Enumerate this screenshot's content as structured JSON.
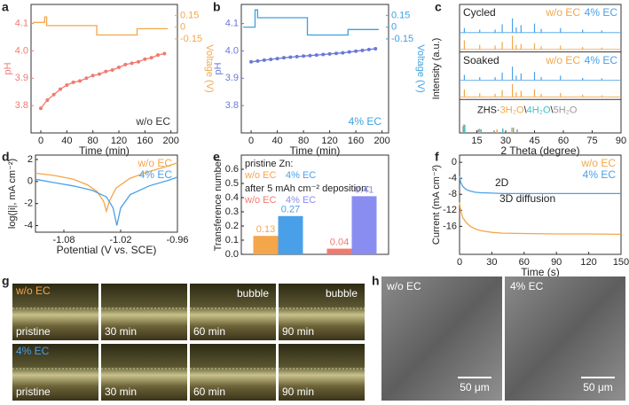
{
  "panel_labels": [
    "a",
    "b",
    "c",
    "d",
    "e",
    "f",
    "g",
    "h"
  ],
  "chart_data": [
    {
      "type": "line",
      "xlabel": "Time (min)",
      "ylabel": "pH",
      "y2label": "Voltage (V)",
      "xlim": [
        -15,
        210
      ],
      "xticks": [
        0,
        40,
        80,
        120,
        160,
        200
      ],
      "ylim": [
        3.7,
        4.17
      ],
      "yticks": [
        3.8,
        3.9,
        {
          "value": 4,
          "label": "4.0"
        },
        4.1
      ],
      "y2lim": [
        -1.35,
        0.29
      ],
      "y2ticks": [
        0.15,
        0,
        -0.15
      ],
      "annotation": {
        "text": "w/o EC",
        "color": "#333333"
      },
      "series": [
        {
          "name": "pH",
          "color": "#f07a70",
          "markers": true,
          "x": [
            0,
            10,
            20,
            30,
            40,
            50,
            60,
            70,
            80,
            90,
            100,
            110,
            120,
            130,
            140,
            150,
            160,
            170,
            180,
            190
          ],
          "values": [
            3.79,
            3.82,
            3.84,
            3.86,
            3.875,
            3.885,
            3.89,
            3.9,
            3.91,
            3.915,
            3.925,
            3.93,
            3.94,
            3.95,
            3.955,
            3.96,
            3.97,
            3.975,
            3.985,
            3.99
          ]
        },
        {
          "name": "Voltage",
          "color": "#f4a64a",
          "axis": "y2",
          "x": [
            -12,
            6,
            6,
            9,
            9,
            86,
            86,
            148,
            148,
            195
          ],
          "values": [
            0.06,
            0.06,
            0.13,
            0.13,
            0.02,
            0.02,
            -0.1,
            -0.1,
            -0.02,
            -0.02
          ]
        }
      ]
    },
    {
      "type": "line",
      "xlabel": "Time (min)",
      "ylabel": "pH",
      "y2label": "Voltage (V)",
      "xlim": [
        -15,
        210
      ],
      "xticks": [
        0,
        40,
        80,
        120,
        160,
        200
      ],
      "ylim": [
        3.7,
        4.17
      ],
      "yticks": [
        3.8,
        3.9,
        {
          "value": 4,
          "label": "4.0"
        },
        4.1
      ],
      "y2lim": [
        -1.35,
        0.29
      ],
      "y2ticks": [
        0.15,
        0,
        -0.15
      ],
      "annotation": {
        "text": "4% EC",
        "color": "#3ea0e0"
      },
      "series": [
        {
          "name": "pH",
          "color": "#6a78d8",
          "markers": true,
          "x": [
            0,
            10,
            20,
            30,
            40,
            50,
            60,
            70,
            80,
            90,
            100,
            110,
            120,
            130,
            140,
            150,
            160,
            170,
            180,
            190
          ],
          "values": [
            3.96,
            3.963,
            3.966,
            3.969,
            3.972,
            3.975,
            3.977,
            3.979,
            3.981,
            3.983,
            3.985,
            3.987,
            3.989,
            3.991,
            3.993,
            3.996,
            3.999,
            4.002,
            4.005,
            4.008
          ]
        },
        {
          "name": "Voltage",
          "color": "#3ea0e0",
          "axis": "y2",
          "x": [
            -12,
            6,
            6,
            10,
            10,
            86,
            86,
            148,
            148,
            195
          ],
          "values": [
            0.0,
            0.0,
            0.22,
            0.22,
            0.12,
            0.12,
            -0.1,
            -0.1,
            -0.03,
            -0.03
          ]
        }
      ]
    },
    {
      "type": "spectrum",
      "xlabel": "2 Theta (degree)",
      "ylabel": "Intensity (a.u.)",
      "xlim": [
        6,
        90
      ],
      "xticks": [
        15,
        30,
        45,
        60,
        75,
        90
      ],
      "groups": [
        {
          "label": "Cycled",
          "series": [
            {
              "name": "w/o EC",
              "color": "#f4a64a",
              "x": [
                8.5,
                16.5,
                24.5,
                28.2,
                33.5,
                35.5,
                38,
                45,
                48.5,
                58.5,
                70,
                80
              ],
              "values": [
                0.6,
                0.3,
                0.25,
                0.5,
                0.9,
                0.3,
                0.35,
                0.4,
                0.2,
                0.25,
                0.15,
                0.12
              ]
            },
            {
              "name": "4% EC",
              "color": "#4aa0e8",
              "x": [
                8.5,
                16.5,
                24.5,
                28.2,
                33.5,
                35.5,
                38,
                45,
                48.5,
                58.5,
                70,
                80
              ],
              "values": [
                0.3,
                0.2,
                0.2,
                0.55,
                0.95,
                0.35,
                0.5,
                0.6,
                0.25,
                0.3,
                0.2,
                0.15
              ]
            }
          ]
        },
        {
          "label": "Soaked",
          "series": [
            {
              "name": "w/o EC",
              "color": "#f4a64a",
              "x": [
                8.5,
                16.5,
                24.5,
                28.2,
                33.5,
                35.5,
                38,
                45,
                48.5,
                58.5,
                70,
                80
              ],
              "values": [
                0.5,
                0.25,
                0.2,
                0.45,
                0.85,
                0.3,
                0.4,
                0.5,
                0.2,
                0.25,
                0.15,
                0.1
              ]
            },
            {
              "name": "4% EC",
              "color": "#4aa0e8",
              "x": [
                8.5,
                16.5,
                24.5,
                28.2,
                33.5,
                35.5,
                38,
                45,
                48.5,
                58.5,
                70,
                80
              ],
              "values": [
                0.35,
                0.2,
                0.2,
                0.5,
                0.9,
                0.3,
                0.45,
                0.55,
                0.2,
                0.3,
                0.15,
                0.12
              ]
            }
          ]
        }
      ],
      "reference": {
        "prefix": "ZHS·",
        "separator": "\\",
        "series": [
          {
            "name": "3H₂O",
            "color": "#f4a64a",
            "x": [
              8.3,
              16.4,
              25.5,
              33.2
            ],
            "values": [
              0.5,
              0.25,
              0.2,
              0.3
            ]
          },
          {
            "name": "4H₂O",
            "color": "#3fc0c8",
            "x": [
              8.7,
              17.2,
              28.5,
              34.0
            ],
            "values": [
              0.45,
              0.2,
              0.25,
              0.3
            ]
          },
          {
            "name": "5H₂O",
            "color": "#999999",
            "x": [
              7.9,
              15.8,
              24.0,
              36.0
            ],
            "values": [
              0.4,
              0.2,
              0.15,
              0.2
            ]
          }
        ]
      }
    },
    {
      "type": "line",
      "xlabel": "Potential (V vs. SCE)",
      "ylabel": "log(|i|, mA cm⁻²)",
      "xlim": [
        -1.11,
        -0.96
      ],
      "xticks": [
        -1.08,
        -1.02,
        -0.96
      ],
      "ylim": [
        -4.6,
        2.4
      ],
      "yticks": [
        2,
        0,
        -2,
        -4
      ],
      "legend": "upper right",
      "series": [
        {
          "name": "w/o EC",
          "color": "#f4a64a",
          "x": [
            -1.11,
            -1.09,
            -1.07,
            -1.055,
            -1.045,
            -1.038,
            -1.035,
            -1.032,
            -1.025,
            -1.01,
            -0.99,
            -0.97,
            -0.96
          ],
          "values": [
            0.75,
            0.55,
            0.2,
            -0.3,
            -0.9,
            -1.8,
            -2.7,
            -1.8,
            -0.6,
            0.3,
            0.9,
            1.4,
            1.7
          ]
        },
        {
          "name": "4% EC",
          "color": "#4aa0e8",
          "x": [
            -1.11,
            -1.09,
            -1.07,
            -1.05,
            -1.035,
            -1.028,
            -1.024,
            -1.02,
            -1.01,
            -0.99,
            -0.97,
            -0.96
          ],
          "values": [
            0.2,
            -0.1,
            -0.4,
            -0.8,
            -1.4,
            -2.4,
            -4.0,
            -2.4,
            -1.2,
            -0.4,
            0.1,
            0.4
          ]
        }
      ]
    },
    {
      "type": "bar",
      "ylabel": "Transference number",
      "ylim": [
        0,
        0.7
      ],
      "yticks": [
        {
          "value": 0,
          "label": "0.0"
        },
        0.1,
        0.2,
        0.3,
        0.4,
        0.5,
        0.6
      ],
      "groups": [
        {
          "label": "pristine Zn:",
          "names": [
            "w/o EC",
            "4% EC"
          ],
          "colors": [
            "#f4a64a",
            "#4aa0e8"
          ],
          "values": [
            0.13,
            0.27
          ]
        },
        {
          "label": "after 5 mAh cm⁻² deposition:",
          "names": [
            "w/o EC",
            "4% EC"
          ],
          "colors": [
            "#f07a70",
            "#8a8df0"
          ],
          "values": [
            0.04,
            0.41
          ]
        }
      ]
    },
    {
      "type": "line",
      "xlabel": "Time (s)",
      "ylabel": "Current (mA cm⁻²)",
      "xlim": [
        0,
        150
      ],
      "xticks": [
        0,
        30,
        60,
        90,
        120,
        150
      ],
      "ylim": [
        -23,
        1.8
      ],
      "yticks": [
        0,
        -4,
        -8,
        -12,
        -16
      ],
      "legend": "upper right",
      "annotations": [
        "2D",
        "3D diffusion"
      ],
      "series": [
        {
          "name": "w/o EC",
          "color": "#f4a64a",
          "x": [
            0,
            1,
            3,
            6,
            10,
            15,
            20,
            30,
            40,
            60,
            90,
            120,
            150
          ],
          "values": [
            -10,
            -12,
            -13.8,
            -15,
            -16,
            -16.7,
            -17.1,
            -17.5,
            -17.7,
            -17.8,
            -17.9,
            -17.9,
            -18
          ]
        },
        {
          "name": "4% EC",
          "color": "#4aa0e8",
          "x": [
            0,
            1,
            3,
            6,
            10,
            15,
            20,
            30,
            40,
            60,
            90,
            120,
            150
          ],
          "values": [
            -3.5,
            -5,
            -6,
            -6.8,
            -7.2,
            -7.5,
            -7.6,
            -7.7,
            -7.8,
            -7.8,
            -7.8,
            -7.8,
            -7.8
          ]
        }
      ]
    }
  ],
  "photos": {
    "g": {
      "rows": [
        {
          "label": "w/o EC",
          "color": "#f4a64a",
          "frames": [
            {
              "caption": "pristine"
            },
            {
              "caption": "30 min"
            },
            {
              "caption": "60 min",
              "note": "bubble"
            },
            {
              "caption": "90 min",
              "note": "bubble"
            }
          ]
        },
        {
          "label": "4% EC",
          "color": "#4aa0e8",
          "frames": [
            {
              "caption": "pristine"
            },
            {
              "caption": "30 min"
            },
            {
              "caption": "60 min"
            },
            {
              "caption": "90 min"
            }
          ]
        }
      ]
    },
    "h": {
      "frames": [
        {
          "caption": "w/o EC",
          "scale": "50 μm"
        },
        {
          "caption": "4% EC",
          "scale": "50 μm"
        }
      ]
    }
  }
}
